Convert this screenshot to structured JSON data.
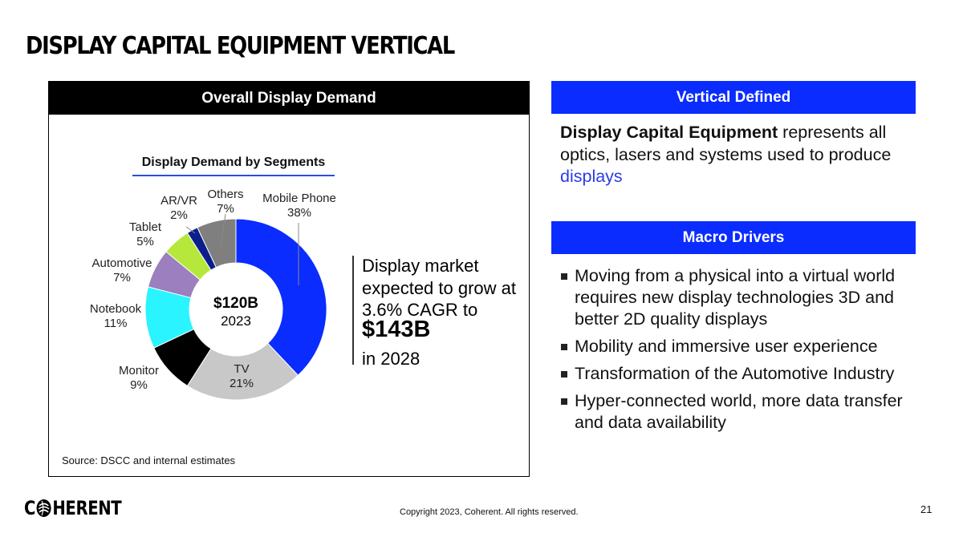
{
  "page": {
    "title": "DISPLAY CAPITAL EQUIPMENT VERTICAL",
    "page_number": "21"
  },
  "left_panel": {
    "header": "Overall Display Demand",
    "center_value": "$120B",
    "center_year": "2023",
    "callout": {
      "text": "Display market expected to grow at 3.6% CAGR to",
      "value": "$143B",
      "tail": "in 2028"
    },
    "source": "Source: DSCC and internal estimates"
  },
  "chart_data": {
    "type": "pie",
    "subtype": "donut",
    "title": "Display Demand by Segments",
    "total": "$120B",
    "year": "2023",
    "segments": [
      {
        "name": "Mobile Phone",
        "value": 38,
        "label": "38%",
        "color": "#0a2cff"
      },
      {
        "name": "TV",
        "value": 21,
        "label": "21%",
        "color": "#c8c8c8"
      },
      {
        "name": "Monitor",
        "value": 9,
        "label": "9%",
        "color": "#000000"
      },
      {
        "name": "Notebook",
        "value": 11,
        "label": "11%",
        "color": "#29f4ff"
      },
      {
        "name": "Automotive",
        "value": 7,
        "label": "7%",
        "color": "#9b7fbf"
      },
      {
        "name": "Tablet",
        "value": 5,
        "label": "5%",
        "color": "#b5e83a"
      },
      {
        "name": "AR/VR",
        "value": 2,
        "label": "2%",
        "color": "#0b1f8c"
      },
      {
        "name": "Others",
        "value": 7,
        "label": "7%",
        "color": "#7f7f7f"
      }
    ]
  },
  "right_panel": {
    "vertical_header": "Vertical Defined",
    "vertical_bold": "Display Capital Equipment",
    "vertical_rest": " represents all optics, lasers and systems used to produce ",
    "vertical_blue": "displays",
    "drivers_header": "Macro Drivers",
    "drivers": [
      "Moving from a physical into a virtual world requires new display technologies 3D and better 2D quality displays",
      "Mobility and immersive user experience",
      "Transformation of the Automotive Industry",
      "Hyper-connected world, more data transfer and data availability"
    ]
  },
  "footer": {
    "logo_pre": "C",
    "logo_post": "HERENT",
    "copyright": "Copyright 2023, Coherent. All rights reserved."
  },
  "colors": {
    "accent_blue": "#0a2cff",
    "header_black": "#000000"
  }
}
